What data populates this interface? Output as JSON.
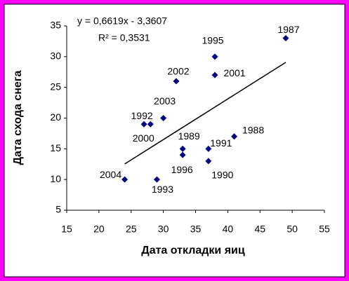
{
  "chart_data": {
    "type": "scatter",
    "x_label": "Дата откладки яиц",
    "y_label": "Дата схода снега",
    "color": "#000080",
    "x": [
      49,
      38,
      38,
      32,
      30,
      27,
      28,
      33,
      33,
      37,
      37,
      41,
      24,
      29
    ],
    "values": [
      33,
      30,
      27,
      26,
      20,
      19,
      19,
      15,
      14,
      15,
      13,
      17,
      10,
      10
    ],
    "point_labels": [
      "1987",
      "1995",
      "2001",
      "2002",
      "2003",
      "1992",
      "2000",
      "1989",
      "1996",
      "1991",
      "1990",
      "1988",
      "2004",
      "1993"
    ],
    "trendline": {
      "slope": 0.6619,
      "intercept": -3.3607,
      "equation": "y = 0,6619x - 3,3607",
      "r_squared_label": "R² = 0,3531"
    },
    "xlim": [
      15,
      55
    ],
    "xticks": [
      15,
      20,
      25,
      30,
      35,
      40,
      45,
      50,
      55
    ],
    "ylim": [
      5,
      35
    ],
    "yticks": [
      5,
      10,
      15,
      20,
      25,
      30,
      35
    ],
    "grid": false
  }
}
